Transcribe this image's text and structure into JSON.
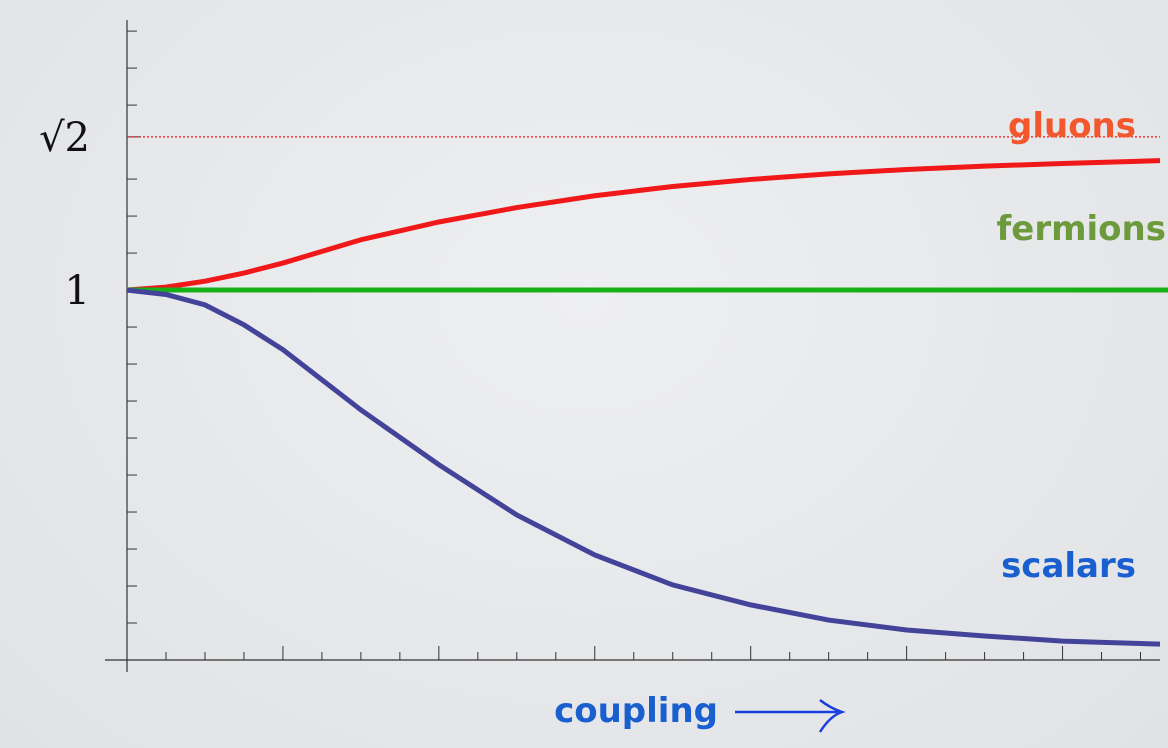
{
  "chart_data": {
    "type": "line",
    "x_label": "coupling",
    "x": [
      0,
      1,
      2,
      3,
      4,
      6,
      8,
      10,
      12,
      14,
      16,
      18,
      20,
      22,
      24,
      26.5
    ],
    "series": [
      {
        "name": "gluons",
        "color": "#f01818",
        "label_color": "#f2572e",
        "values": [
          1,
          1.008,
          1.024,
          1.046,
          1.073,
          1.136,
          1.184,
          1.223,
          1.255,
          1.28,
          1.299,
          1.314,
          1.326,
          1.335,
          1.342,
          1.35
        ]
      },
      {
        "name": "fermions",
        "color": "#18b018",
        "label_color": "#6c9a3c",
        "values": [
          1,
          1,
          1,
          1,
          1,
          1,
          1,
          1,
          1,
          1,
          1,
          1,
          1,
          1,
          1,
          1
        ]
      },
      {
        "name": "scalars",
        "color": "#43439a",
        "label_color": "#1a5fd0",
        "values": [
          1,
          0.988,
          0.96,
          0.906,
          0.839,
          0.676,
          0.528,
          0.392,
          0.284,
          0.203,
          0.149,
          0.108,
          0.081,
          0.065,
          0.051,
          0.043
        ]
      }
    ],
    "reference_line": {
      "value": 1.414,
      "color": "#f01818"
    },
    "xlim": [
      0,
      26.5
    ],
    "ylim": [
      0,
      1.73
    ],
    "xticks": [
      1,
      2,
      3,
      4,
      5,
      6,
      7,
      8,
      9,
      10,
      11,
      12,
      13,
      14,
      15,
      16,
      17,
      18,
      19,
      20,
      21,
      22,
      23,
      24,
      25,
      26
    ],
    "yticks": [
      {
        "value": 1.414,
        "label": "√2"
      },
      1
    ],
    "yminor": [
      0.1,
      0.2,
      0.3,
      0.4,
      0.5,
      0.6,
      0.7,
      0.8,
      0.9,
      1.1,
      1.2,
      1.3,
      1.5,
      1.6,
      1.7
    ]
  }
}
